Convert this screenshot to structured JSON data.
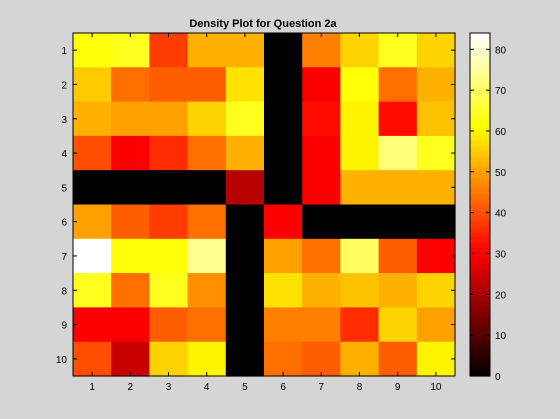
{
  "chart_data": {
    "type": "heatmap",
    "title": "Density Plot for Question 2a",
    "xlabel": "",
    "ylabel": "",
    "x_categories": [
      "1",
      "2",
      "3",
      "4",
      "5",
      "6",
      "7",
      "8",
      "9",
      "10"
    ],
    "y_categories": [
      "1",
      "2",
      "3",
      "4",
      "5",
      "6",
      "7",
      "8",
      "9",
      "10"
    ],
    "values": [
      [
        62,
        64,
        38,
        52,
        52,
        0,
        46,
        56,
        64,
        56
      ],
      [
        55,
        44,
        42,
        42,
        58,
        0,
        30,
        62,
        44,
        52
      ],
      [
        52,
        50,
        50,
        56,
        64,
        0,
        32,
        60,
        32,
        54
      ],
      [
        40,
        30,
        36,
        44,
        52,
        0,
        30,
        60,
        72,
        64
      ],
      [
        0,
        0,
        0,
        0,
        22,
        0,
        30,
        52,
        52,
        52
      ],
      [
        50,
        42,
        38,
        44,
        0,
        30,
        0,
        0,
        0,
        0
      ],
      [
        84,
        62,
        62,
        74,
        0,
        50,
        44,
        70,
        42,
        30
      ],
      [
        64,
        44,
        64,
        48,
        0,
        58,
        52,
        54,
        52,
        56
      ],
      [
        30,
        30,
        42,
        44,
        0,
        46,
        46,
        36,
        56,
        50
      ],
      [
        40,
        24,
        56,
        60,
        0,
        44,
        42,
        52,
        42,
        60
      ]
    ],
    "colormap": "hot",
    "clim": [
      0,
      84
    ],
    "colorbar": {
      "ticks": [
        0,
        10,
        20,
        30,
        40,
        50,
        60,
        70,
        80
      ],
      "tick_labels": [
        "0",
        "10",
        "20",
        "30",
        "40",
        "50",
        "60",
        "70",
        "80"
      ]
    },
    "grid": false
  },
  "style": {
    "figure_bg": "#d5d5d5",
    "axes_border": "#000000",
    "text_color": "#000000"
  }
}
